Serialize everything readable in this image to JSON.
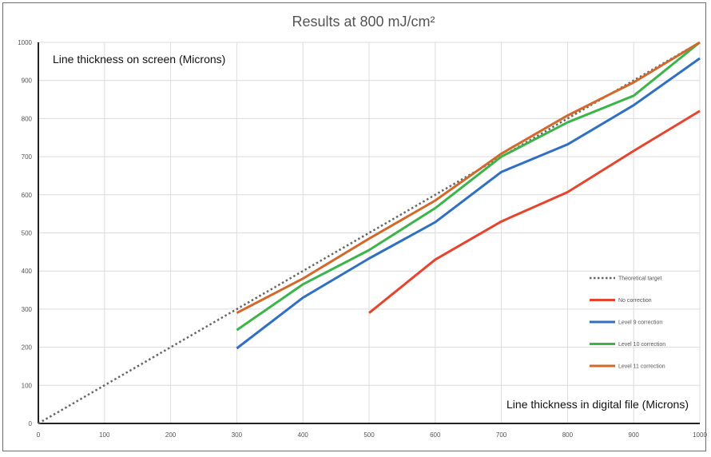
{
  "chart_data": {
    "type": "line",
    "title": "Results at 800 mJ/cm²",
    "xlabel": "Line thickness in digital file (Microns)",
    "ylabel": "Line thickness on screen (Microns)",
    "xlim": [
      0,
      1000
    ],
    "ylim": [
      0,
      1000
    ],
    "x_ticks": [
      "0",
      "100",
      "200",
      "300",
      "400",
      "500",
      "600",
      "700",
      "800",
      "900",
      "1000"
    ],
    "y_ticks": [
      "0",
      "100",
      "200",
      "300",
      "400",
      "500",
      "600",
      "700",
      "800",
      "900",
      "1000"
    ],
    "grid": true,
    "legend_position": "bottom-right",
    "series": [
      {
        "name": "Theoretical target",
        "color": "#666666",
        "style": "dotted",
        "x": [
          0,
          1000
        ],
        "y": [
          0,
          1000
        ]
      },
      {
        "name": "No correction",
        "color": "#e8432c",
        "style": "solid",
        "x": [
          500,
          600,
          700,
          800,
          900,
          1000
        ],
        "y": [
          290,
          430,
          530,
          607,
          715,
          820
        ]
      },
      {
        "name": "Level 9 correction",
        "color": "#2f6fc4",
        "style": "solid",
        "x": [
          300,
          400,
          500,
          600,
          700,
          800,
          900,
          1000
        ],
        "y": [
          197,
          330,
          433,
          528,
          660,
          732,
          835,
          958
        ]
      },
      {
        "name": "Level 10 correction",
        "color": "#3bb54a",
        "style": "solid",
        "x": [
          300,
          400,
          500,
          600,
          700,
          800,
          900,
          1000
        ],
        "y": [
          245,
          365,
          455,
          565,
          700,
          790,
          860,
          1000
        ]
      },
      {
        "name": "Level 11 correction",
        "color": "#d2692a",
        "style": "solid",
        "x": [
          300,
          400,
          500,
          600,
          700,
          800,
          900,
          1000
        ],
        "y": [
          290,
          380,
          485,
          585,
          708,
          808,
          895,
          1000
        ]
      }
    ]
  }
}
